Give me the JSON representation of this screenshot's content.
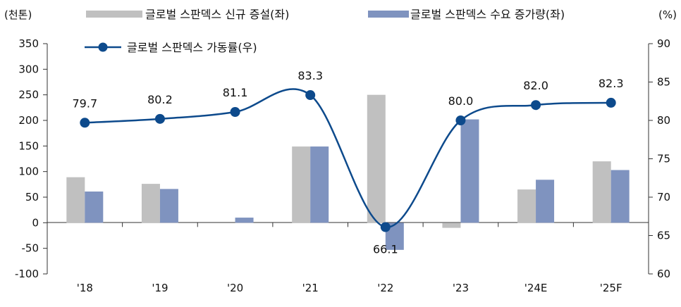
{
  "chart_data": {
    "type": "bar",
    "categories": [
      "'18",
      "'19",
      "'20",
      "'21",
      "'22",
      "'23",
      "'24E",
      "'25F"
    ],
    "series": [
      {
        "name": "글로벌 스판덱스 신규 증설(좌)",
        "kind": "bar",
        "axis": "left",
        "color": "#c0c0c0",
        "values": [
          89,
          76,
          0,
          149,
          250,
          -10,
          65,
          120
        ]
      },
      {
        "name": "글로벌 스판덱스 수요 증가량(좌)",
        "kind": "bar",
        "axis": "left",
        "color": "#7f93bf",
        "values": [
          61,
          66,
          10,
          149,
          -53,
          202,
          84,
          103
        ]
      },
      {
        "name": "글로벌 스판덱스 가동률(우)",
        "kind": "line",
        "axis": "right",
        "color": "#0d4a8c",
        "values": [
          79.7,
          80.2,
          81.1,
          83.3,
          66.1,
          80.0,
          82.0,
          82.3
        ],
        "labels": [
          "79.7",
          "80.2",
          "81.1",
          "83.3",
          "66.1",
          "80.0",
          "82.0",
          "82.3"
        ]
      }
    ],
    "left_axis": {
      "unit": "(천톤)",
      "min": -100,
      "max": 350,
      "step": 50,
      "ticks": [
        "350",
        "300",
        "250",
        "200",
        "150",
        "100",
        "50",
        "0",
        "-50",
        "-100"
      ]
    },
    "right_axis": {
      "unit": "(%)",
      "min": 60,
      "max": 90,
      "step": 5,
      "ticks": [
        "90",
        "85",
        "80",
        "75",
        "70",
        "65",
        "60"
      ]
    },
    "legend_position": "top"
  }
}
